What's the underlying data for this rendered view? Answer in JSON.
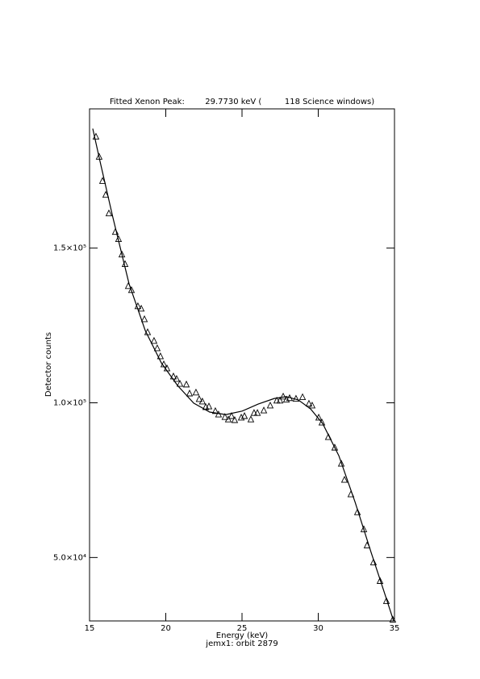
{
  "chart_data": {
    "type": "scatter",
    "title": "Fitted Xenon Peak:        29.7730 keV (         118 Science windows)",
    "subtitle": "jemx1: orbit 2879",
    "x_label": "Energy (keV)",
    "y_label": "Detector counts",
    "xlim": [
      15,
      35
    ],
    "xticks": [
      15,
      20,
      25,
      30,
      35
    ],
    "ylim": [
      29500,
      195000
    ],
    "yticks": [
      {
        "value": 50000,
        "label": "5.0×10⁴"
      },
      {
        "value": 100000,
        "label": "1.0×10⁵"
      },
      {
        "value": 150000,
        "label": "1.5×10⁵"
      }
    ],
    "series": [
      {
        "type": "scatter",
        "marker": "triangle",
        "color": "#000000",
        "x": [
          15.42,
          15.63,
          15.85,
          16.06,
          16.27,
          16.69,
          16.9,
          17.12,
          17.33,
          17.54,
          17.75,
          18.17,
          18.39,
          18.6,
          18.81,
          19.23,
          19.44,
          19.65,
          19.87,
          20.08,
          20.5,
          20.71,
          20.93,
          21.35,
          21.56,
          21.98,
          22.19,
          22.4,
          22.62,
          22.83,
          23.25,
          23.46,
          23.88,
          24.1,
          24.31,
          24.52,
          24.95,
          25.16,
          25.58,
          25.79,
          26.01,
          26.43,
          26.85,
          27.28,
          27.49,
          27.7,
          27.91,
          28.12,
          28.54,
          28.97,
          29.39,
          29.6,
          30.03,
          30.24,
          30.66,
          31.08,
          31.51,
          31.72,
          32.14,
          32.57,
          32.99,
          33.2,
          33.62,
          34.05,
          34.47,
          34.89
        ],
        "values": [
          186000,
          179500,
          171700,
          167200,
          161200,
          155200,
          152900,
          147900,
          144800,
          137700,
          136400,
          131200,
          130400,
          127000,
          122800,
          120000,
          117600,
          115000,
          112400,
          111100,
          108500,
          107700,
          106100,
          105900,
          103000,
          103300,
          101200,
          100400,
          98600,
          98800,
          97300,
          96200,
          95400,
          94600,
          95700,
          94400,
          95200,
          95700,
          94600,
          96700,
          96700,
          97500,
          99100,
          100700,
          100700,
          102000,
          101000,
          101500,
          101300,
          101800,
          99700,
          99100,
          95200,
          93600,
          88900,
          85500,
          80300,
          75100,
          70400,
          64600,
          59100,
          53900,
          48400,
          42400,
          35900,
          29900
        ]
      },
      {
        "type": "line",
        "color": "#000000",
        "x": [
          15.21,
          15.74,
          16.53,
          17.59,
          18.65,
          19.71,
          20.77,
          21.83,
          22.88,
          23.94,
          25.0,
          26.06,
          27.12,
          27.91,
          28.7,
          29.5,
          30.29,
          31.35,
          32.41,
          33.47,
          34.26,
          34.95
        ],
        "values": [
          188600,
          176900,
          159900,
          138500,
          123400,
          112900,
          105600,
          99900,
          97000,
          96200,
          97300,
          99600,
          101400,
          102000,
          100900,
          98000,
          93300,
          82900,
          68000,
          51600,
          39800,
          29400
        ]
      }
    ]
  }
}
